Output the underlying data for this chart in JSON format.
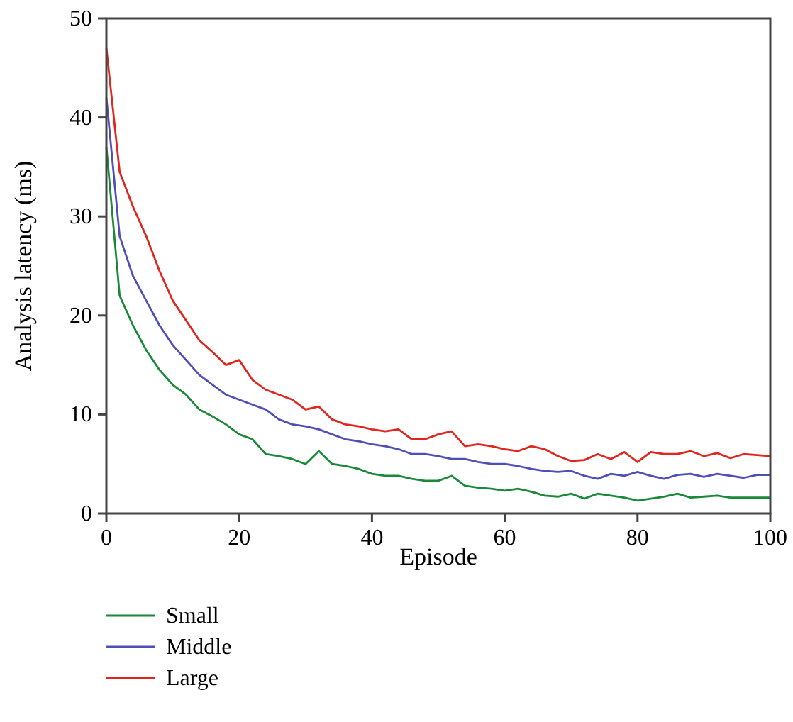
{
  "chart_data": {
    "type": "line",
    "xlabel": "Episode",
    "ylabel": "Analysis latency (ms)",
    "x": [
      0,
      2,
      4,
      6,
      8,
      10,
      12,
      14,
      16,
      18,
      20,
      22,
      24,
      26,
      28,
      30,
      32,
      34,
      36,
      38,
      40,
      42,
      44,
      46,
      48,
      50,
      52,
      54,
      56,
      58,
      60,
      62,
      64,
      66,
      68,
      70,
      72,
      74,
      76,
      78,
      80,
      82,
      84,
      86,
      88,
      90,
      92,
      94,
      96,
      98,
      100
    ],
    "series": [
      {
        "name": "Small",
        "color": "#1a8a3a",
        "values": [
          37,
          22,
          19,
          16.5,
          14.5,
          13,
          12,
          10.5,
          9.8,
          9,
          8,
          7.5,
          6,
          5.8,
          5.5,
          5,
          6.3,
          5,
          4.8,
          4.5,
          4,
          3.8,
          3.8,
          3.5,
          3.3,
          3.3,
          3.8,
          2.8,
          2.6,
          2.5,
          2.3,
          2.5,
          2.2,
          1.8,
          1.7,
          2,
          1.5,
          2,
          1.8,
          1.6,
          1.3,
          1.5,
          1.7,
          2,
          1.6,
          1.7,
          1.8,
          1.6,
          1.6,
          1.6,
          1.6
        ]
      },
      {
        "name": "Middle",
        "color": "#4f4fb8",
        "values": [
          42,
          28,
          24,
          21.5,
          19,
          17,
          15.5,
          14,
          13,
          12,
          11.5,
          11,
          10.5,
          9.5,
          9,
          8.8,
          8.5,
          8,
          7.5,
          7.3,
          7,
          6.8,
          6.5,
          6,
          6,
          5.8,
          5.5,
          5.5,
          5.2,
          5,
          5,
          4.8,
          4.5,
          4.3,
          4.2,
          4.3,
          3.8,
          3.5,
          4,
          3.8,
          4.2,
          3.8,
          3.5,
          3.9,
          4,
          3.7,
          4,
          3.8,
          3.6,
          3.9,
          3.9
        ]
      },
      {
        "name": "Large",
        "color": "#e0261e",
        "values": [
          47,
          34.5,
          31,
          28,
          24.5,
          21.5,
          19.5,
          17.5,
          16.3,
          15,
          15.5,
          13.5,
          12.5,
          12,
          11.5,
          10.5,
          10.8,
          9.5,
          9,
          8.8,
          8.5,
          8.3,
          8.5,
          7.5,
          7.5,
          8,
          8.3,
          6.8,
          7,
          6.8,
          6.5,
          6.3,
          6.8,
          6.5,
          5.8,
          5.3,
          5.4,
          6,
          5.5,
          6.2,
          5.2,
          6.2,
          6,
          6,
          6.3,
          5.8,
          6.1,
          5.6,
          6,
          5.9,
          5.8
        ]
      }
    ],
    "xlim": [
      0,
      100
    ],
    "xticks": [
      0,
      20,
      40,
      60,
      80,
      100
    ],
    "ylim": [
      0,
      50
    ],
    "yticks": [
      0,
      10,
      20,
      30,
      40,
      50
    ],
    "grid": false,
    "legend": "bottom left",
    "marker": "none",
    "line_style": "solid"
  }
}
